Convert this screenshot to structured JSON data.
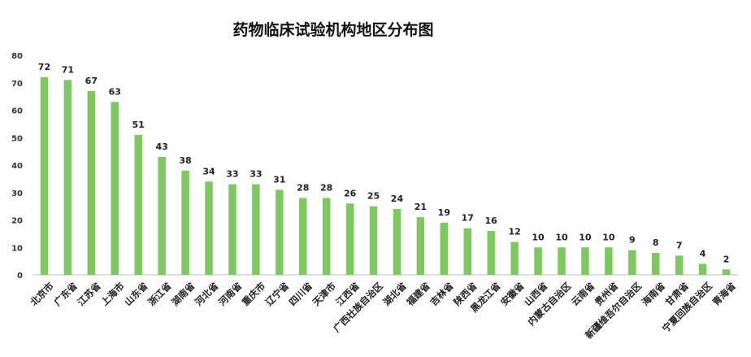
{
  "chart_data": {
    "type": "bar",
    "title": "药物临床试验机构地区分布图",
    "xlabel": "",
    "ylabel": "",
    "ylim": [
      0,
      80
    ],
    "yticks": [
      0,
      10,
      20,
      30,
      40,
      50,
      60,
      70,
      80
    ],
    "grid": false,
    "bar_color": "#7dc95e",
    "categories": [
      "北京市",
      "广东省",
      "江苏省",
      "上海市",
      "山东省",
      "浙江省",
      "湖南省",
      "河北省",
      "河南省",
      "重庆市",
      "辽宁省",
      "四川省",
      "天津市",
      "江西省",
      "广西壮族自治区",
      "湖北省",
      "福建省",
      "吉林省",
      "陕西省",
      "黑龙江省",
      "安徽省",
      "山西省",
      "内蒙古自治区",
      "云南省",
      "贵州省",
      "新疆维吾尔自治区",
      "海南省",
      "甘肃省",
      "宁夏回族自治区",
      "青海省"
    ],
    "values": [
      72,
      71,
      67,
      63,
      51,
      43,
      38,
      34,
      33,
      33,
      31,
      28,
      28,
      26,
      25,
      24,
      21,
      19,
      17,
      16,
      12,
      10,
      10,
      10,
      10,
      9,
      8,
      7,
      4,
      2
    ]
  }
}
